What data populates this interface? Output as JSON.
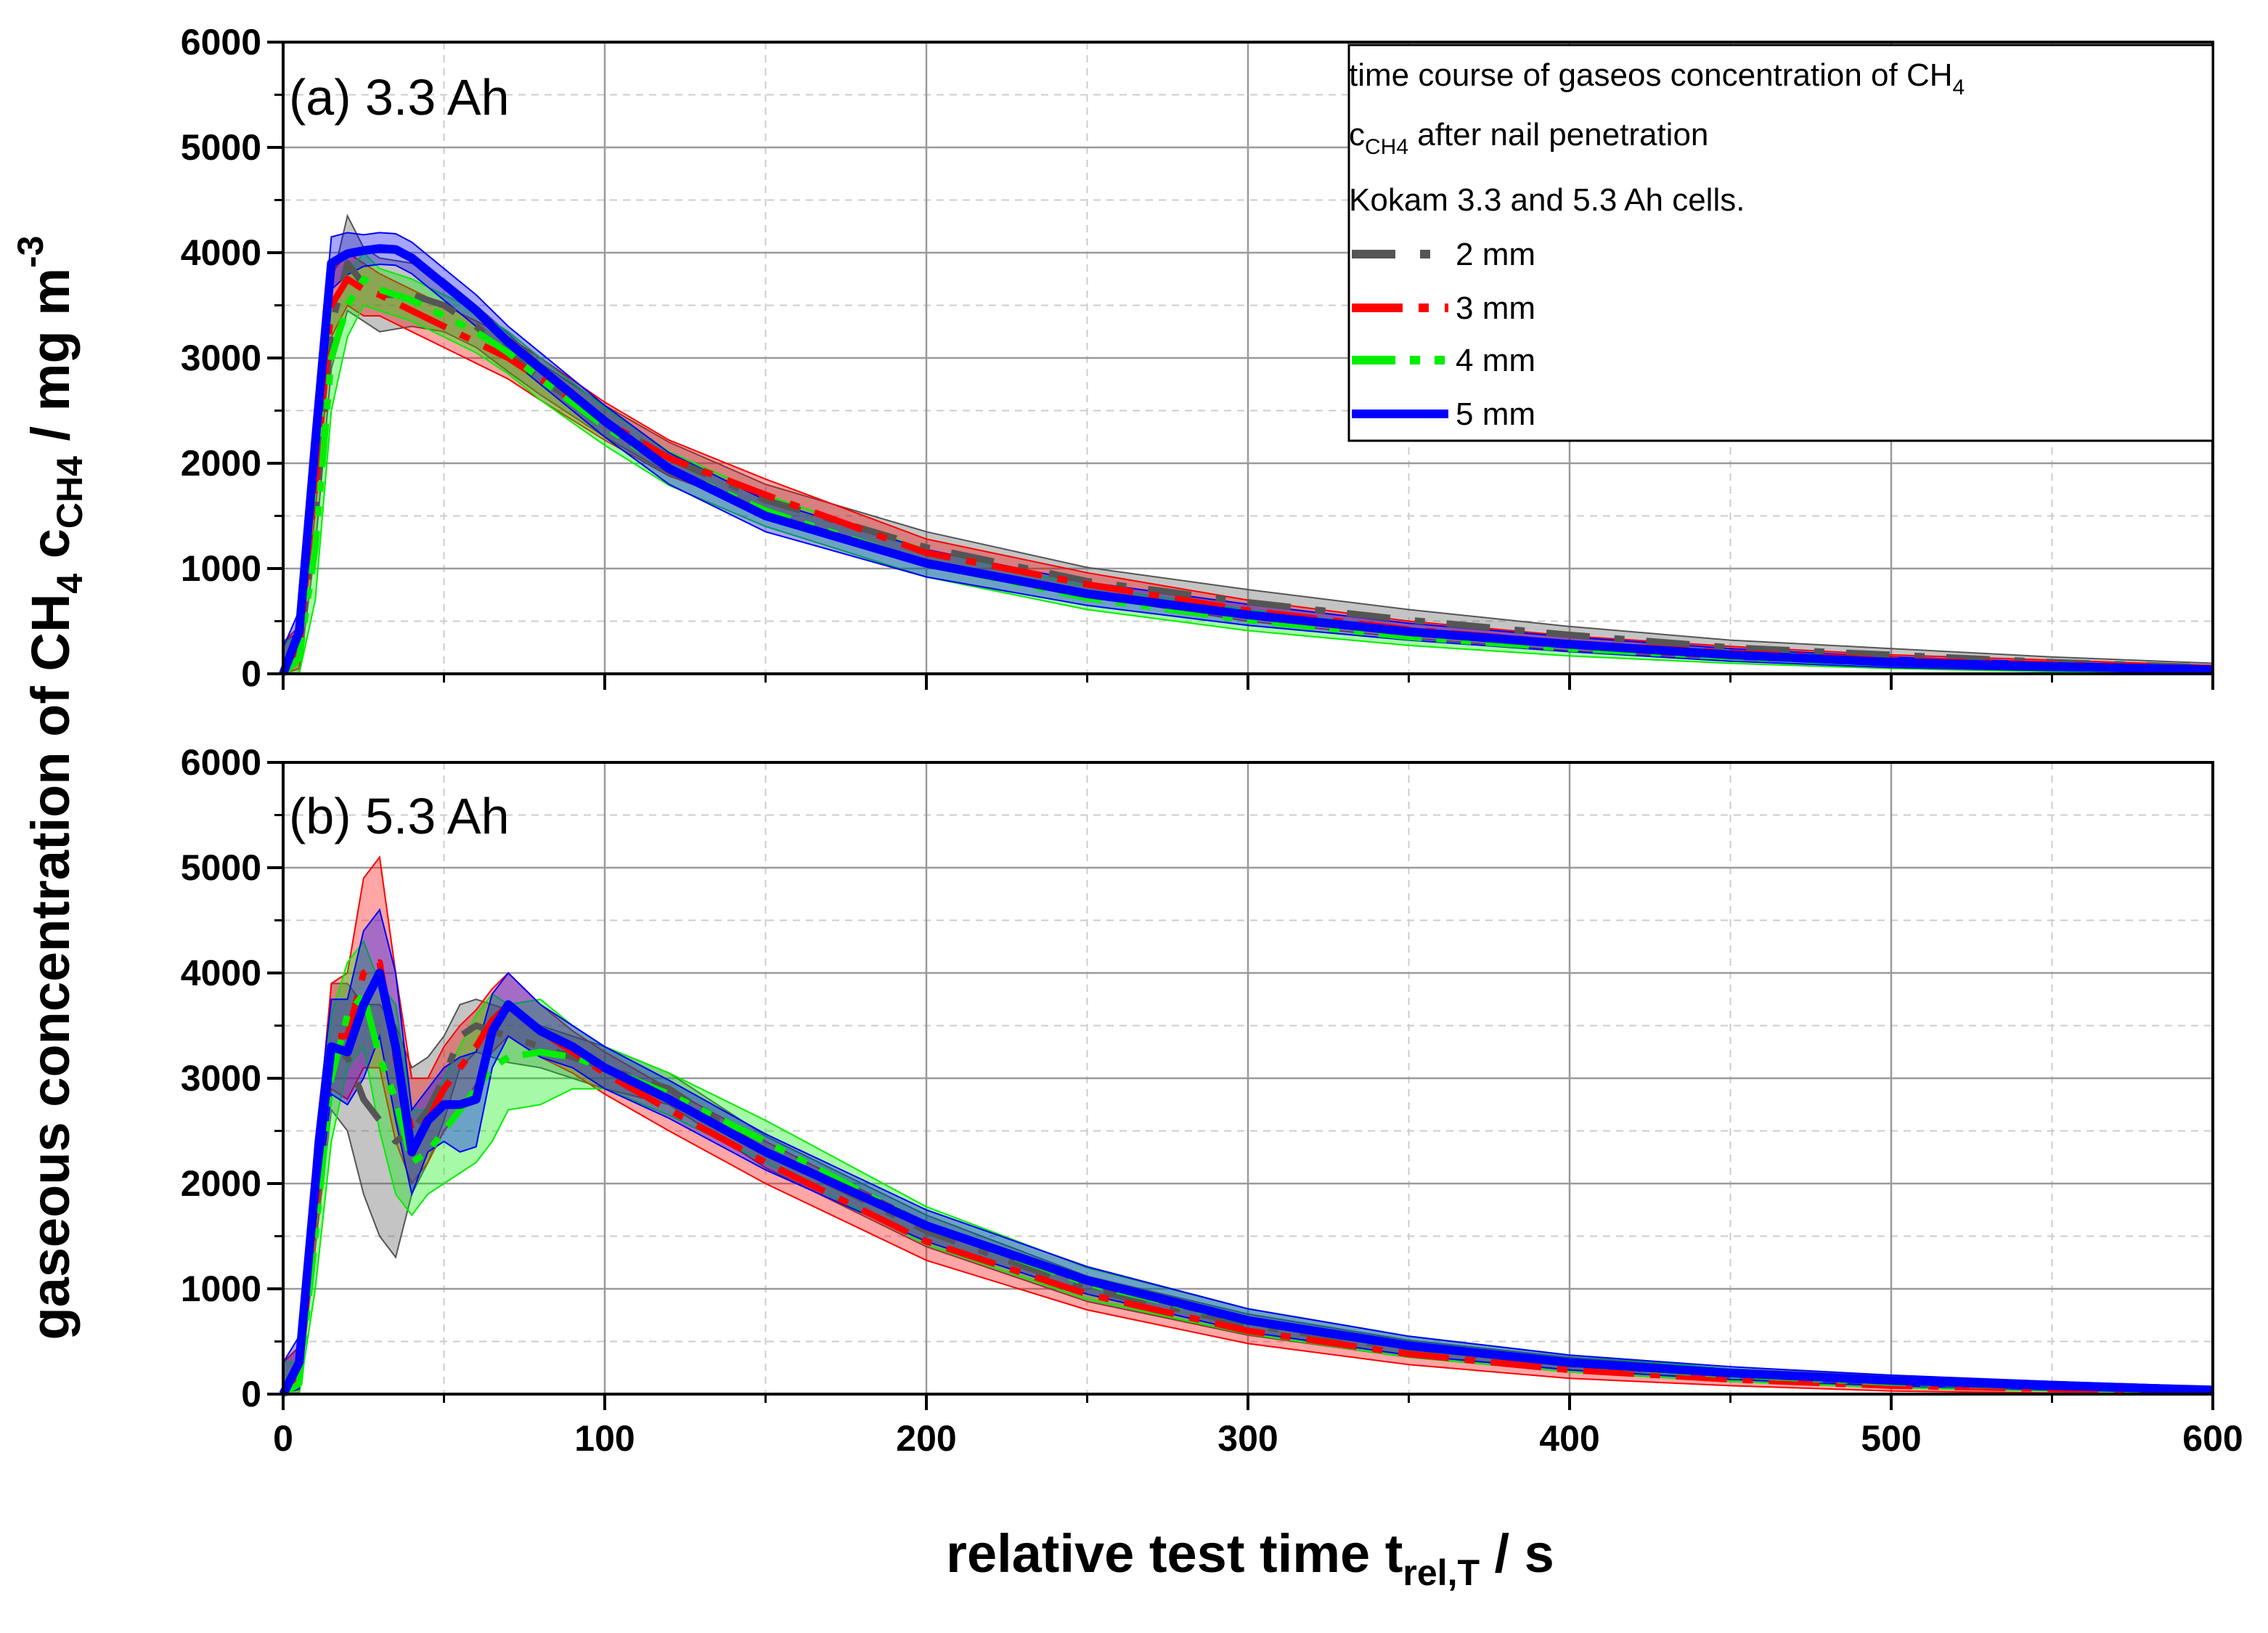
{
  "chart_data": {
    "type": "line",
    "y_axis_title": {
      "main": "gaseous concentration of CH",
      "sub1": "4",
      "mid": " c",
      "sub2": "CH4",
      "unit": " / mg m",
      "sup": "-3"
    },
    "x_axis_title": {
      "main": "relative test time t",
      "sub": "rel,T",
      "unit": " / s"
    },
    "xlim": [
      0,
      600
    ],
    "ylim": [
      0,
      6000
    ],
    "x_ticks": [
      "0",
      "100",
      "200",
      "300",
      "400",
      "500",
      "600"
    ],
    "y_ticks": [
      "0",
      "1000",
      "2000",
      "3000",
      "4000",
      "5000",
      "6000"
    ],
    "grid": true,
    "legend": {
      "position": "top-right",
      "title_line1": "time course of gaseos concentration of CH",
      "title_line1_sub": "4",
      "title_line2_c": "c",
      "title_line2_sub": "CH4",
      "title_line2_rest": " after nail penetration",
      "title_line3": "Kokam 3.3 and 5.3 Ah cells.",
      "entries": [
        "2 mm",
        "3 mm",
        "4 mm",
        "5 mm"
      ]
    },
    "colors": {
      "2 mm": "#555555",
      "3 mm": "#ff0000",
      "4 mm": "#00ee00",
      "5 mm": "#0000ff"
    },
    "panels": [
      {
        "label": "(a) 3.3 Ah",
        "series": [
          {
            "name": "2 mm",
            "x": [
              0,
              5,
              10,
              15,
              20,
              25,
              30,
              40,
              50,
              60,
              70,
              80,
              100,
              120,
              150,
              200,
              250,
              300,
              350,
              400,
              450,
              500,
              550,
              600
            ],
            "values": [
              0,
              200,
              1500,
              3300,
              3900,
              3700,
              3600,
              3600,
              3500,
              3300,
              3050,
              2800,
              2400,
              2050,
              1650,
              1200,
              880,
              680,
              510,
              370,
              250,
              180,
              110,
              60
            ],
            "band": [
              300,
              200,
              300,
              400,
              450,
              350,
              350,
              300,
              250,
              200,
              180,
              150,
              150,
              150,
              150,
              150,
              130,
              120,
              100,
              80,
              70,
              60,
              50,
              40
            ]
          },
          {
            "name": "3 mm",
            "x": [
              0,
              5,
              10,
              15,
              20,
              25,
              30,
              40,
              50,
              60,
              70,
              80,
              100,
              120,
              150,
              200,
              250,
              300,
              350,
              400,
              450,
              500,
              550,
              600
            ],
            "values": [
              0,
              250,
              1800,
              3500,
              3750,
              3650,
              3600,
              3450,
              3300,
              3150,
              3000,
              2800,
              2400,
              2050,
              1700,
              1150,
              850,
              600,
              420,
              290,
              200,
              130,
              90,
              50
            ],
            "band": [
              300,
              200,
              250,
              300,
              250,
              250,
              200,
              200,
              200,
              200,
              200,
              200,
              180,
              170,
              150,
              130,
              110,
              100,
              80,
              70,
              60,
              50,
              40,
              30
            ]
          },
          {
            "name": "4 mm",
            "x": [
              0,
              5,
              10,
              15,
              20,
              25,
              30,
              40,
              50,
              60,
              70,
              80,
              100,
              120,
              150,
              200,
              250,
              300,
              350,
              400,
              450,
              500,
              550,
              600
            ],
            "values": [
              0,
              150,
              1200,
              3000,
              3500,
              3750,
              3650,
              3550,
              3400,
              3250,
              3050,
              2800,
              2350,
              1950,
              1550,
              1050,
              720,
              510,
              350,
              240,
              160,
              100,
              60,
              30
            ],
            "band": [
              300,
              200,
              500,
              500,
              300,
              250,
              200,
              200,
              200,
              200,
              200,
              200,
              180,
              160,
              150,
              130,
              110,
              100,
              80,
              70,
              60,
              50,
              40,
              30
            ]
          },
          {
            "name": "5 mm",
            "x": [
              0,
              5,
              10,
              15,
              20,
              25,
              30,
              35,
              40,
              50,
              60,
              70,
              80,
              100,
              120,
              150,
              200,
              250,
              300,
              350,
              400,
              450,
              500,
              550,
              600
            ],
            "values": [
              0,
              400,
              2200,
              3900,
              3990,
              4020,
              4040,
              4030,
              3950,
              3700,
              3450,
              3150,
              2900,
              2400,
              1950,
              1500,
              1050,
              760,
              560,
              400,
              280,
              180,
              110,
              70,
              40
            ],
            "band": [
              250,
              200,
              250,
              250,
              200,
              150,
              150,
              150,
              150,
              150,
              150,
              150,
              150,
              150,
              150,
              150,
              130,
              110,
              100,
              80,
              70,
              60,
              50,
              40,
              30
            ]
          }
        ]
      },
      {
        "label": "(b) 5.3 Ah",
        "series": [
          {
            "name": "2 mm",
            "x": [
              0,
              5,
              10,
              15,
              20,
              25,
              30,
              35,
              40,
              45,
              50,
              55,
              60,
              65,
              70,
              80,
              90,
              100,
              120,
              150,
              200,
              250,
              300,
              350,
              400,
              450,
              500,
              550,
              600
            ],
            "values": [
              0,
              200,
              1800,
              3300,
              3200,
              2800,
              2600,
              2400,
              2500,
              2700,
              3000,
              3400,
              3500,
              3450,
              3400,
              3300,
              3200,
              3100,
              2900,
              2300,
              1550,
              1000,
              660,
              430,
              280,
              180,
              120,
              80,
              40
            ],
            "band": [
              300,
              250,
              400,
              600,
              700,
              900,
              1100,
              1100,
              600,
              500,
              400,
              300,
              250,
              250,
              250,
              200,
              200,
              200,
              150,
              150,
              150,
              120,
              100,
              80,
              70,
              60,
              50,
              40,
              30
            ]
          },
          {
            "name": "3 mm",
            "x": [
              0,
              5,
              10,
              15,
              20,
              25,
              30,
              35,
              40,
              45,
              50,
              55,
              60,
              65,
              70,
              80,
              90,
              100,
              120,
              150,
              200,
              250,
              300,
              350,
              400,
              450,
              500,
              550,
              600
            ],
            "values": [
              0,
              200,
              1800,
              3400,
              3400,
              4000,
              4100,
              3200,
              2500,
              2600,
              2900,
              3100,
              3300,
              3550,
              3700,
              3450,
              3250,
              3050,
              2700,
              2200,
              1450,
              950,
              600,
              380,
              230,
              140,
              80,
              50,
              30
            ],
            "band": [
              300,
              250,
              400,
              500,
              600,
              900,
              1000,
              800,
              500,
              400,
              400,
              400,
              350,
              300,
              300,
              250,
              200,
              200,
              200,
              200,
              180,
              150,
              120,
              100,
              80,
              60,
              50,
              40,
              30
            ]
          },
          {
            "name": "4 mm",
            "x": [
              0,
              5,
              10,
              15,
              20,
              25,
              30,
              35,
              40,
              45,
              50,
              55,
              60,
              65,
              70,
              80,
              90,
              100,
              120,
              150,
              200,
              250,
              300,
              350,
              400,
              450,
              500,
              550,
              600
            ],
            "values": [
              0,
              100,
              1500,
              3000,
              3600,
              3800,
              3200,
              2800,
              2200,
              2300,
              2500,
              2700,
              2900,
              3100,
              3200,
              3250,
              3200,
              3100,
              2850,
              2400,
              1600,
              1050,
              690,
              450,
              290,
              180,
              110,
              70,
              40
            ],
            "band": [
              300,
              200,
              500,
              600,
              500,
              500,
              700,
              900,
              500,
              400,
              500,
              600,
              700,
              700,
              500,
              500,
              300,
              200,
              200,
              200,
              180,
              150,
              120,
              100,
              80,
              60,
              50,
              40,
              30
            ]
          },
          {
            "name": "5 mm",
            "x": [
              0,
              5,
              10,
              15,
              20,
              25,
              30,
              35,
              40,
              45,
              50,
              55,
              60,
              65,
              70,
              80,
              90,
              100,
              120,
              150,
              200,
              250,
              300,
              350,
              400,
              450,
              500,
              550,
              600
            ],
            "values": [
              0,
              300,
              2000,
              3300,
              3250,
              3700,
              4000,
              3300,
              2300,
              2600,
              2750,
              2750,
              2800,
              3450,
              3700,
              3450,
              3300,
              3100,
              2800,
              2300,
              1600,
              1080,
              700,
              460,
              300,
              200,
              130,
              80,
              40
            ],
            "band": [
              300,
              250,
              400,
              450,
              500,
              700,
              600,
              700,
              400,
              300,
              350,
              450,
              450,
              350,
              300,
              250,
              200,
              200,
              180,
              170,
              150,
              130,
              110,
              90,
              70,
              60,
              50,
              40,
              30
            ]
          }
        ]
      }
    ]
  }
}
